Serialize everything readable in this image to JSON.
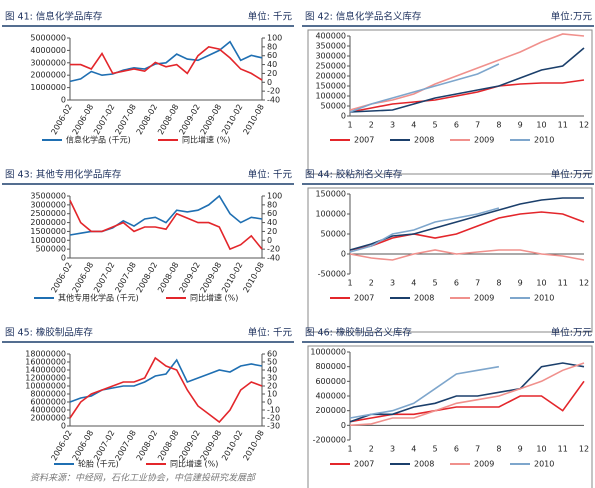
{
  "chart_data": [
    {
      "type": "line",
      "title": "图 41: 信息化学品库存",
      "unit": "单位: 千元",
      "legend": "bottom",
      "categories": [
        "2006-02",
        null,
        "2006-08",
        null,
        "2007-02",
        null,
        "2007-08",
        null,
        "2008-02",
        null,
        "2008-08",
        null,
        "2009-02",
        null,
        "2009-08",
        null,
        "2010-02",
        null,
        "2010-08"
      ],
      "ylim": [
        0,
        5000000
      ],
      "yticks": [
        0,
        1000000,
        2000000,
        3000000,
        4000000,
        5000000
      ],
      "y2lim": [
        -40,
        100
      ],
      "y2ticks": [
        -40,
        -20,
        0,
        20,
        40,
        60,
        80,
        100
      ],
      "series": [
        {
          "name": "信息化学品 (千元)",
          "color": "#1f6fb2",
          "values": [
            1500000,
            1700000,
            2300000,
            2000000,
            2100000,
            2400000,
            2600000,
            2500000,
            2900000,
            3000000,
            3700000,
            3300000,
            3200000,
            3600000,
            4000000,
            4700000,
            3200000,
            3600000,
            3400000
          ]
        },
        {
          "name": "同比增速 (%)",
          "color": "#e3262b",
          "axis": "y2",
          "values": [
            40,
            40,
            30,
            65,
            20,
            25,
            30,
            25,
            45,
            35,
            40,
            20,
            60,
            80,
            75,
            55,
            30,
            20,
            5
          ]
        }
      ]
    },
    {
      "type": "line",
      "title": "图 42: 信息化学品名义库存",
      "unit": "单位:万元",
      "legend": "bottom",
      "categories": [
        "1",
        "2",
        "3",
        "4",
        "5",
        "6",
        "7",
        "8",
        "9",
        "10",
        "11",
        "12"
      ],
      "ylim": [
        0,
        400000
      ],
      "yticks": [
        0,
        50000,
        100000,
        150000,
        200000,
        250000,
        300000,
        350000,
        400000
      ],
      "series": [
        {
          "name": "2007",
          "color": "#e3262b",
          "values": [
            20000,
            40000,
            60000,
            70000,
            80000,
            100000,
            120000,
            150000,
            160000,
            165000,
            165000,
            180000
          ]
        },
        {
          "name": "2008",
          "color": "#1b3f6b",
          "values": [
            20000,
            25000,
            30000,
            60000,
            90000,
            110000,
            130000,
            150000,
            190000,
            230000,
            250000,
            340000
          ]
        },
        {
          "name": "2009",
          "color": "#f0908c",
          "values": [
            30000,
            60000,
            80000,
            110000,
            160000,
            200000,
            240000,
            280000,
            320000,
            370000,
            410000,
            400000
          ]
        },
        {
          "name": "2010",
          "color": "#7ea6cc",
          "values": [
            20000,
            60000,
            90000,
            120000,
            150000,
            180000,
            210000,
            260000,
            null,
            null,
            null,
            null
          ]
        }
      ]
    },
    {
      "type": "line",
      "title": "图 43: 其他专用化学品库存",
      "unit": "单位: 千元",
      "legend": "bottom",
      "categories": [
        "2006-02",
        null,
        "2006-08",
        null,
        "2007-02",
        null,
        "2007-08",
        null,
        "2008-02",
        null,
        "2008-08",
        null,
        "2009-02",
        null,
        "2009-08",
        null,
        "2010-02",
        null,
        "2010-08"
      ],
      "ylim": [
        0,
        3500000
      ],
      "yticks": [
        0,
        500000,
        1000000,
        1500000,
        2000000,
        2500000,
        3000000,
        3500000
      ],
      "y2lim": [
        -40,
        100
      ],
      "y2ticks": [
        -40,
        -20,
        0,
        20,
        40,
        60,
        80,
        100
      ],
      "series": [
        {
          "name": "其他专用化学品 (千元)",
          "color": "#1f6fb2",
          "values": [
            1300000,
            1400000,
            1500000,
            1500000,
            1700000,
            2100000,
            1800000,
            2200000,
            2300000,
            2000000,
            2700000,
            2600000,
            2700000,
            3000000,
            3500000,
            2500000,
            2000000,
            2300000,
            2200000
          ]
        },
        {
          "name": "同比增速 (%)",
          "color": "#e3262b",
          "axis": "y2",
          "values": [
            90,
            40,
            20,
            20,
            30,
            40,
            20,
            30,
            30,
            25,
            60,
            50,
            40,
            40,
            30,
            -20,
            -10,
            10,
            -20
          ]
        }
      ]
    },
    {
      "type": "line",
      "title": "图 44: 胶粘剂名义库存",
      "unit": "单位:万元",
      "legend": "bottom",
      "categories": [
        "1",
        "2",
        "3",
        "4",
        "5",
        "6",
        "7",
        "8",
        "9",
        "10",
        "11",
        "12"
      ],
      "ylim": [
        -50000,
        150000
      ],
      "yticks": [
        -50000,
        0,
        50000,
        100000,
        150000
      ],
      "series": [
        {
          "name": "2007",
          "color": "#e3262b",
          "values": [
            10000,
            20000,
            40000,
            50000,
            40000,
            50000,
            70000,
            90000,
            100000,
            105000,
            100000,
            80000
          ]
        },
        {
          "name": "2008",
          "color": "#1b3f6b",
          "values": [
            10000,
            25000,
            45000,
            50000,
            65000,
            80000,
            95000,
            110000,
            125000,
            135000,
            140000,
            140000
          ]
        },
        {
          "name": "2009",
          "color": "#f0908c",
          "values": [
            0,
            -10000,
            -15000,
            0,
            10000,
            0,
            5000,
            10000,
            10000,
            0,
            -5000,
            -15000
          ]
        },
        {
          "name": "2010",
          "color": "#7ea6cc",
          "values": [
            5000,
            20000,
            50000,
            60000,
            80000,
            90000,
            100000,
            115000,
            null,
            null,
            null,
            null
          ]
        }
      ]
    },
    {
      "type": "line",
      "title": "图 45: 橡胶制品库存",
      "unit": "单位: 千元",
      "legend": "bottom",
      "categories": [
        "2006-02",
        null,
        "2006-08",
        null,
        "2007-02",
        null,
        "2007-08",
        null,
        "2008-02",
        null,
        "2008-08",
        null,
        "2009-02",
        null,
        "2009-08",
        null,
        "2010-02",
        null,
        "2010-08"
      ],
      "ylim": [
        0,
        18000000
      ],
      "yticks": [
        0,
        2000000,
        4000000,
        6000000,
        8000000,
        10000000,
        12000000,
        14000000,
        16000000,
        18000000
      ],
      "y2lim": [
        -30,
        60
      ],
      "y2ticks": [
        -30,
        -20,
        -10,
        0,
        10,
        20,
        30,
        40,
        50,
        60
      ],
      "series": [
        {
          "name": "轮胎 (千元)",
          "color": "#1f6fb2",
          "values": [
            6000000,
            7000000,
            7500000,
            9000000,
            9500000,
            10000000,
            10000000,
            11000000,
            12500000,
            13000000,
            16500000,
            11000000,
            12000000,
            13000000,
            14000000,
            13500000,
            15000000,
            15500000,
            15000000
          ]
        },
        {
          "name": "同比增速 (%)",
          "color": "#e3262b",
          "axis": "y2",
          "values": [
            -20,
            0,
            10,
            15,
            20,
            25,
            25,
            30,
            55,
            45,
            40,
            15,
            -5,
            -15,
            -25,
            -10,
            15,
            25,
            20
          ]
        }
      ]
    },
    {
      "type": "line",
      "title": "图 46: 橡胶制品名义库存",
      "unit": "单位:万元",
      "legend": "bottom",
      "categories": [
        "1",
        "2",
        "3",
        "4",
        "5",
        "6",
        "7",
        "8",
        "9",
        "10",
        "11",
        "12"
      ],
      "ylim": [
        -200000,
        1000000
      ],
      "yticks": [
        -200000,
        0,
        200000,
        400000,
        600000,
        800000,
        1000000
      ],
      "series": [
        {
          "name": "2007",
          "color": "#e3262b",
          "values": [
            50000,
            100000,
            150000,
            150000,
            200000,
            250000,
            250000,
            250000,
            400000,
            400000,
            200000,
            600000
          ]
        },
        {
          "name": "2008",
          "color": "#1b3f6b",
          "values": [
            50000,
            150000,
            150000,
            250000,
            300000,
            400000,
            400000,
            450000,
            500000,
            800000,
            850000,
            800000
          ]
        },
        {
          "name": "2009",
          "color": "#f0908c",
          "values": [
            0,
            20000,
            100000,
            100000,
            200000,
            300000,
            350000,
            400000,
            500000,
            600000,
            750000,
            850000
          ]
        },
        {
          "name": "2010",
          "color": "#7ea6cc",
          "values": [
            100000,
            150000,
            200000,
            300000,
            500000,
            700000,
            750000,
            800000,
            null,
            null,
            null,
            null
          ]
        }
      ]
    }
  ],
  "source": "资料来源：中经网，石化工业协会，中信建投研究发展部"
}
